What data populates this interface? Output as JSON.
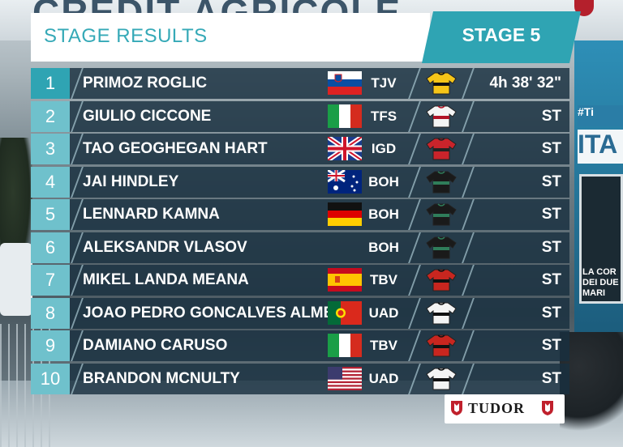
{
  "background": {
    "banner_text": "CREDIT AGRICOLE",
    "side_tag": "#Ti",
    "side_ita": "ITA",
    "side_sign_text": "LA COR DEI DUE MARI"
  },
  "header": {
    "title": "STAGE RESULTS",
    "stage": "STAGE 5"
  },
  "colors": {
    "accent": "#2fa4b3",
    "accent_light": "#6fc1cc",
    "bar": "#183040"
  },
  "results": [
    {
      "pos": "1",
      "name": "PRIMOZ ROGLIC",
      "flag": "slovenia",
      "team": "TJV",
      "jersey": "jumbo-visma",
      "time": "4h 38' 32\""
    },
    {
      "pos": "2",
      "name": "GIULIO CICCONE",
      "flag": "italy",
      "team": "TFS",
      "jersey": "trek-segafredo",
      "time": "ST"
    },
    {
      "pos": "3",
      "name": "TAO GEOGHEGAN HART",
      "flag": "united-kingdom",
      "team": "IGD",
      "jersey": "ineos",
      "time": "ST"
    },
    {
      "pos": "4",
      "name": "JAI HINDLEY",
      "flag": "australia",
      "team": "BOH",
      "jersey": "bora-hansgrohe",
      "time": "ST"
    },
    {
      "pos": "5",
      "name": "LENNARD KAMNA",
      "flag": "germany",
      "team": "BOH",
      "jersey": "bora-hansgrohe",
      "time": "ST"
    },
    {
      "pos": "6",
      "name": "ALEKSANDR VLASOV",
      "flag": "",
      "team": "BOH",
      "jersey": "bora-hansgrohe",
      "time": "ST"
    },
    {
      "pos": "7",
      "name": "MIKEL LANDA MEANA",
      "flag": "spain",
      "team": "TBV",
      "jersey": "bahrain-victorious",
      "time": "ST"
    },
    {
      "pos": "8",
      "name": "JOAO PEDRO GONCALVES ALMEIDA",
      "flag": "portugal",
      "team": "UAD",
      "jersey": "uae-emirates",
      "time": "ST"
    },
    {
      "pos": "9",
      "name": "DAMIANO CARUSO",
      "flag": "italy",
      "team": "TBV",
      "jersey": "bahrain-victorious",
      "time": "ST"
    },
    {
      "pos": "10",
      "name": "BRANDON MCNULTY",
      "flag": "usa",
      "team": "UAD",
      "jersey": "uae-emirates",
      "time": "ST"
    }
  ],
  "sponsor": {
    "name": "TUDOR"
  }
}
